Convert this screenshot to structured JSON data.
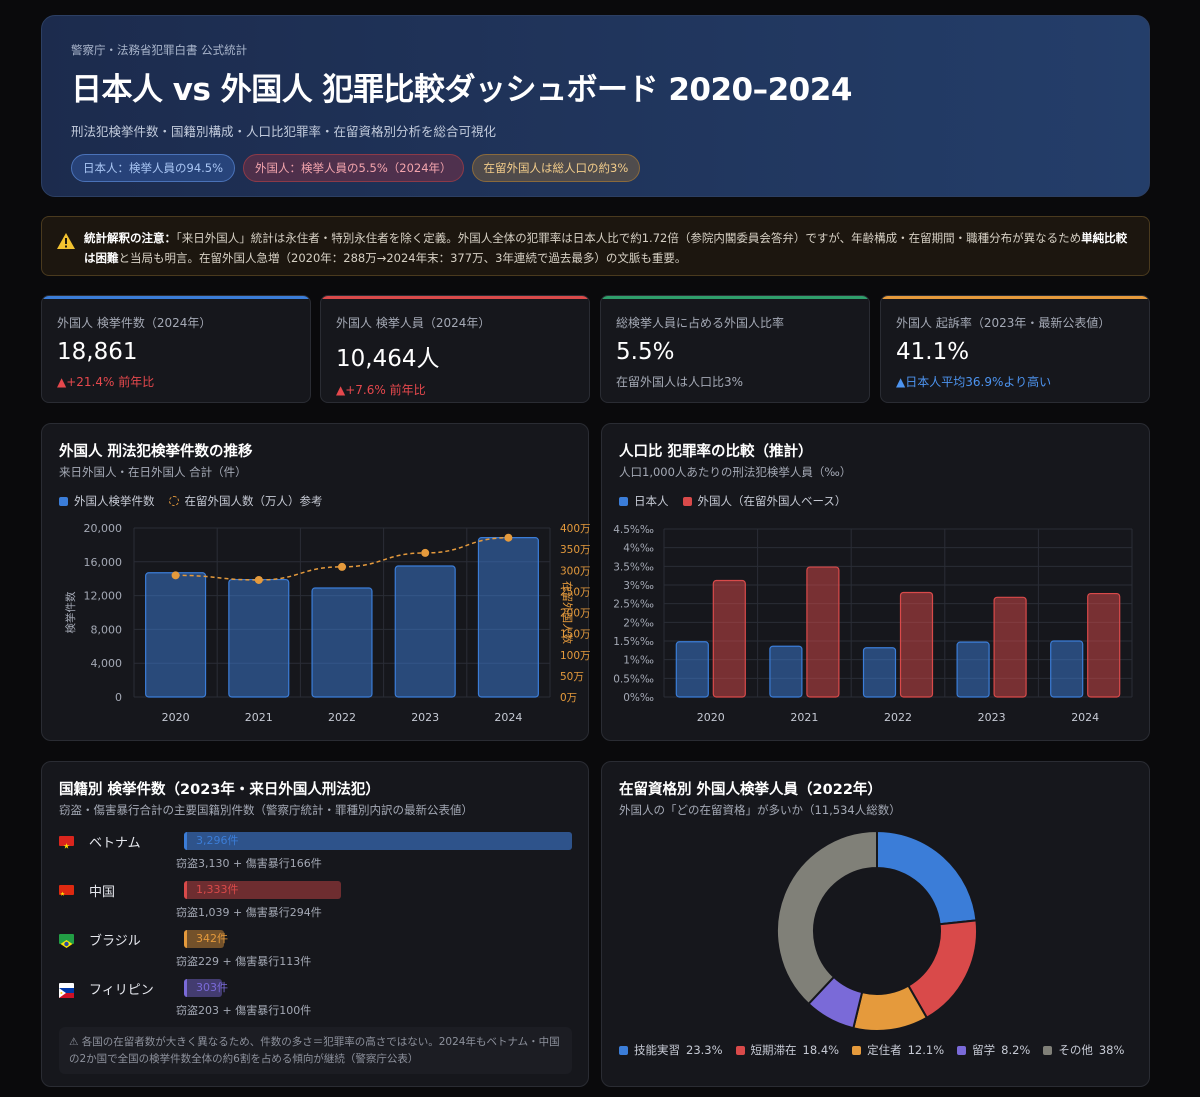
{
  "hero": {
    "kicker": "警察庁・法務省犯罪白書 公式統計",
    "title": "日本人 vs 外国人 犯罪比較ダッシュボード 2020–2024",
    "subtitle": "刑法犯検挙件数・国籍別構成・人口比犯罪率・在留資格別分析を総合可視化",
    "pills": [
      "日本人：検挙人員の94.5%",
      "外国人：検挙人員の5.5%（2024年）",
      "在留外国人は総人口の約3%"
    ]
  },
  "warning": {
    "lead": "統計解釈の注意：",
    "text1": "「来日外国人」統計は永住者・特別永住者を除く定義。外国人全体の犯罪率は日本人比で約1.72倍（参院内閣委員会答弁）ですが、年齢構成・在留期間・職種分布が異なるため",
    "bold": "単純比較は困難",
    "text2": "と当局も明言。在留外国人急増（2020年：288万→2024年末：377万、3年連続で過去最多）の文脈も重要。"
  },
  "kpis": [
    {
      "label": "外国人 検挙件数（2024年）",
      "value": "18,861",
      "note": "▲+21.4% 前年比",
      "accent": "#3b7dd8",
      "note_color": "#e5484d"
    },
    {
      "label": "外国人 検挙人員（2024年）",
      "value": "10,464人",
      "note": "▲+7.6% 前年比",
      "accent": "#d94a4a",
      "note_color": "#e5484d"
    },
    {
      "label": "総検挙人員に占める外国人比率",
      "value": "5.5%",
      "note": "在留外国人は人口比3%",
      "accent": "#2f9e6b",
      "note_color": "#a4a9b5"
    },
    {
      "label": "外国人 起訴率（2023年・最新公表値）",
      "value": "41.1%",
      "note": "▲日本人平均36.9%より高い",
      "accent": "#e59a3c",
      "note_color": "#4d94f0"
    }
  ],
  "panels": {
    "trend": {
      "title": "外国人 刑法犯検挙件数の推移",
      "subtitle": "来日外国人・在日外国人 合計（件）"
    },
    "rate": {
      "title": "人口比 犯罪率の比較（推計）",
      "subtitle": "人口1,000人あたりの刑法犯検挙人員（‰）"
    },
    "nationality": {
      "title": "国籍別 検挙件数（2023年・来日外国人刑法犯）",
      "subtitle": "窃盗・傷害暴行合計の主要国籍別件数（警察庁統計・罪種別内訳の最新公表値）"
    },
    "status": {
      "title": "在留資格別 外国人検挙人員（2022年）",
      "subtitle": "外国人の「どの在留資格」が多いか（11,534人総数）"
    }
  },
  "chart_data": [
    {
      "type": "bar",
      "categories": [
        "2020",
        "2021",
        "2022",
        "2023",
        "2024"
      ],
      "series": [
        {
          "name": "外国人検挙件数",
          "type": "bar",
          "values": [
            14700,
            13900,
            12900,
            15500,
            18861
          ],
          "color": "#3b7dd8"
        },
        {
          "name": "在留外国人数（万人）参考",
          "type": "line",
          "axis": "right",
          "values": [
            288,
            277,
            308,
            341,
            377
          ],
          "color": "#e59a3c"
        }
      ],
      "ylabel": "検挙件数",
      "y2label": "在留外国人数",
      "ylim": [
        0,
        20000
      ],
      "y2lim": [
        0,
        400
      ],
      "yticks": [
        "0",
        "4,000",
        "8,000",
        "12,000",
        "16,000",
        "20,000"
      ],
      "y2ticks": [
        "0万",
        "50万",
        "100万",
        "150万",
        "200万",
        "250万",
        "300万",
        "350万",
        "400万"
      ],
      "grid": true,
      "legend": "top-left"
    },
    {
      "type": "bar",
      "categories": [
        "2020",
        "2021",
        "2022",
        "2023",
        "2024"
      ],
      "series": [
        {
          "name": "日本人",
          "values": [
            1.48,
            1.36,
            1.32,
            1.47,
            1.5
          ],
          "color": "#3b7dd8"
        },
        {
          "name": "外国人（在留外国人ベース）",
          "values": [
            3.12,
            3.48,
            2.8,
            2.67,
            2.77
          ],
          "color": "#d94a4a"
        }
      ],
      "ylim": [
        0,
        4.5
      ],
      "yticks": [
        "0%‰",
        "0.5%‰",
        "1%‰",
        "1.5%‰",
        "2%‰",
        "2.5%‰",
        "3%‰",
        "3.5%‰",
        "4%‰",
        "4.5%‰"
      ],
      "grid": true,
      "legend": "top-left"
    },
    {
      "type": "bar",
      "orientation": "horizontal",
      "categories": [
        "ベトナム",
        "中国",
        "ブラジル",
        "フィリピン"
      ],
      "values": [
        3296,
        1333,
        342,
        303
      ],
      "value_labels": [
        "3,296件",
        "1,333件",
        "342件",
        "303件"
      ],
      "details": [
        "窃盗3,130 + 傷害暴行166件",
        "窃盗1,039 + 傷害暴行294件",
        "窃盗229 + 傷害暴行113件",
        "窃盗203 + 傷害暴行100件"
      ],
      "colors": [
        "#3b7dd8",
        "#d94a4a",
        "#e59a3c",
        "#7a6ad8"
      ],
      "flag_icons": [
        "vietnam-flag-icon",
        "china-flag-icon",
        "brazil-flag-icon",
        "philippines-flag-icon"
      ],
      "xlim": [
        0,
        3296
      ],
      "note": "⚠ 各国の在留者数が大きく異なるため、件数の多さ＝犯罪率の高さではない。2024年もベトナム・中国の2か国で全国の検挙件数全体の約6割を占める傾向が継続（警察庁公表）"
    },
    {
      "type": "pie",
      "donut": true,
      "labels": [
        "技能実習",
        "短期滞在",
        "定住者",
        "留学",
        "その他"
      ],
      "values": [
        23.3,
        18.4,
        12.1,
        8.2,
        38
      ],
      "display": [
        "23.3%",
        "18.4%",
        "12.1%",
        "8.2%",
        "38%"
      ],
      "colors": [
        "#3b7dd8",
        "#d94a4a",
        "#e59a3c",
        "#7a6ad8",
        "#808078"
      ],
      "legend": "bottom"
    }
  ]
}
